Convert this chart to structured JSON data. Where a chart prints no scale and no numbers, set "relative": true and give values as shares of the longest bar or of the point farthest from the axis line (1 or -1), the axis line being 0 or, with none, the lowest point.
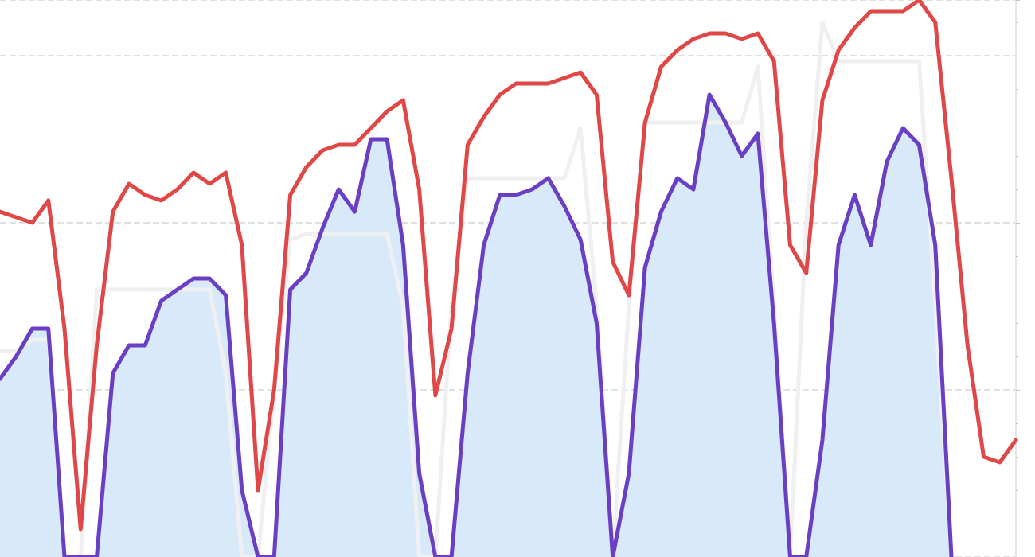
{
  "chart_data": {
    "type": "line",
    "relative": true,
    "grid": "y",
    "categories": [
      null,
      null,
      null,
      null,
      null,
      null,
      null,
      null,
      null,
      null,
      null,
      null,
      null,
      null,
      null,
      null,
      null,
      null,
      null,
      null,
      null,
      null,
      null,
      null,
      null,
      null,
      null,
      null,
      null,
      null,
      null,
      null,
      null,
      null,
      null,
      null,
      null,
      null,
      null,
      null,
      null,
      null,
      null,
      null,
      null,
      null,
      null,
      null,
      null,
      null,
      null,
      null,
      null,
      null,
      null,
      null,
      null,
      null,
      null,
      null,
      null,
      null,
      null,
      null
    ],
    "series": [
      {
        "color": "#f0f0f2",
        "values": [
          0.37,
          0.37,
          0.39,
          0.39,
          0,
          0,
          0.48,
          0.48,
          0.48,
          0.48,
          0.48,
          0.48,
          0.48,
          0.48,
          0.33,
          0,
          0,
          0.3,
          0.57,
          0.58,
          0.58,
          0.58,
          0.58,
          0.58,
          0.58,
          0.45,
          0,
          0,
          0.45,
          0.68,
          0.68,
          0.68,
          0.68,
          0.68,
          0.68,
          0.68,
          0.77,
          0.45,
          0,
          0.45,
          0.78,
          0.78,
          0.78,
          0.78,
          0.78,
          0.78,
          0.78,
          0.88,
          0.45,
          0,
          0.6,
          0.96,
          0.89,
          0.89,
          0.89,
          0.89,
          0.89,
          0.89,
          0.45,
          0,
          null,
          null,
          null,
          null
        ]
      },
      {
        "type": "area",
        "color": "#6a3fc4",
        "values": [
          0.32,
          0.36,
          0.41,
          0.41,
          0,
          0,
          0,
          0.33,
          0.38,
          0.38,
          0.46,
          0.48,
          0.5,
          0.5,
          0.47,
          0.12,
          0,
          0,
          0.48,
          0.51,
          0.59,
          0.66,
          0.62,
          0.75,
          0.75,
          0.56,
          0.15,
          0,
          0,
          0.33,
          0.56,
          0.65,
          0.65,
          0.66,
          0.68,
          0.63,
          0.57,
          0.42,
          0,
          0.15,
          0.52,
          0.62,
          0.68,
          0.66,
          0.83,
          0.78,
          0.72,
          0.76,
          0.42,
          0,
          0,
          0.21,
          0.56,
          0.65,
          0.56,
          0.71,
          0.77,
          0.74,
          0.56,
          0,
          null,
          null,
          null,
          null
        ]
      },
      {
        "color": "#e04848",
        "values": [
          0.62,
          0.61,
          0.6,
          0.64,
          0.41,
          0.05,
          0.38,
          0.62,
          0.67,
          0.65,
          0.64,
          0.66,
          0.69,
          0.67,
          0.69,
          0.56,
          0.12,
          0.3,
          0.65,
          0.7,
          0.73,
          0.74,
          0.74,
          0.77,
          0.8,
          0.82,
          0.66,
          0.29,
          0.41,
          0.74,
          0.79,
          0.83,
          0.85,
          0.85,
          0.85,
          0.86,
          0.87,
          0.83,
          0.53,
          0.47,
          0.78,
          0.88,
          0.91,
          0.93,
          0.94,
          0.94,
          0.93,
          0.94,
          0.89,
          0.56,
          0.51,
          0.82,
          0.91,
          0.95,
          0.98,
          0.98,
          0.98,
          1,
          0.96,
          0.68,
          0.38,
          0.18,
          0.17,
          0.21
        ]
      }
    ]
  }
}
